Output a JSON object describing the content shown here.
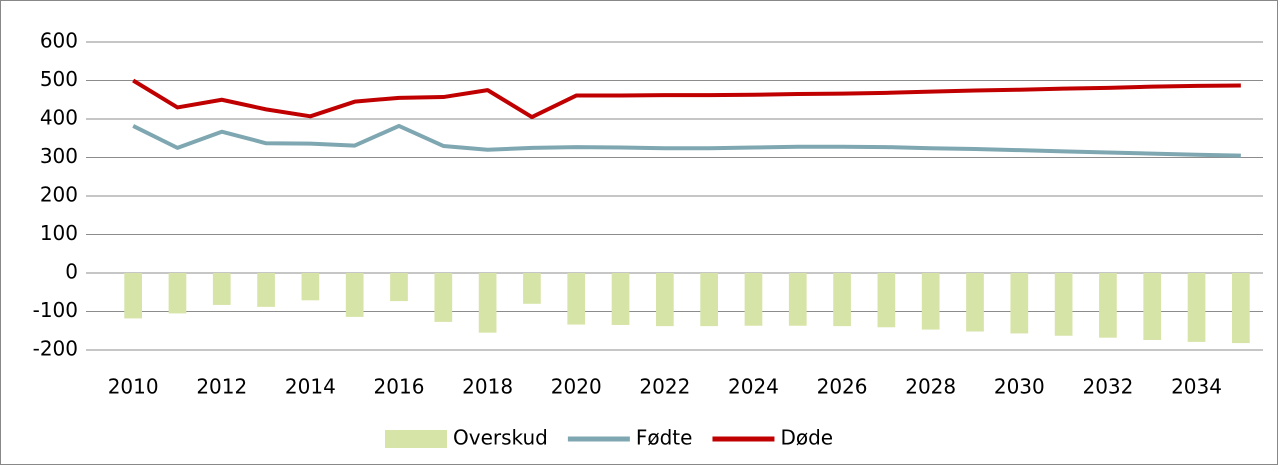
{
  "chart_data": {
    "type": "combo",
    "categories": [
      "2010",
      null,
      "2012",
      null,
      "2014",
      null,
      "2016",
      null,
      "2018",
      null,
      "2020",
      null,
      "2022",
      null,
      "2024",
      null,
      "2026",
      null,
      "2028",
      null,
      "2030",
      null,
      "2032",
      null,
      "2034",
      null
    ],
    "series": [
      {
        "name": "Overskud",
        "type": "bar",
        "color": "#d7e4a8",
        "values": [
          -118,
          -105,
          -83,
          -88,
          -71,
          -114,
          -73,
          -127,
          -155,
          -80,
          -134,
          -135,
          -138,
          -138,
          -137,
          -137,
          -138,
          -141,
          -147,
          -152,
          -157,
          -163,
          -168,
          -174,
          -179,
          -182
        ]
      },
      {
        "name": "Fødte",
        "type": "line",
        "color": "#7fa7b1",
        "values": [
          382,
          325,
          367,
          337,
          336,
          331,
          382,
          330,
          320,
          325,
          327,
          326,
          324,
          324,
          326,
          328,
          328,
          327,
          324,
          322,
          319,
          316,
          313,
          310,
          307,
          305
        ]
      },
      {
        "name": "Døde",
        "type": "line",
        "color": "#c00000",
        "values": [
          500,
          430,
          450,
          425,
          407,
          445,
          455,
          457,
          475,
          405,
          461,
          461,
          462,
          462,
          463,
          465,
          466,
          468,
          471,
          474,
          476,
          479,
          481,
          484,
          486,
          487
        ]
      }
    ],
    "ylim": [
      -200,
      600
    ],
    "yticks": [
      -200,
      -100,
      0,
      100,
      200,
      300,
      400,
      500,
      600
    ],
    "grid": true,
    "legend": "bottom"
  }
}
